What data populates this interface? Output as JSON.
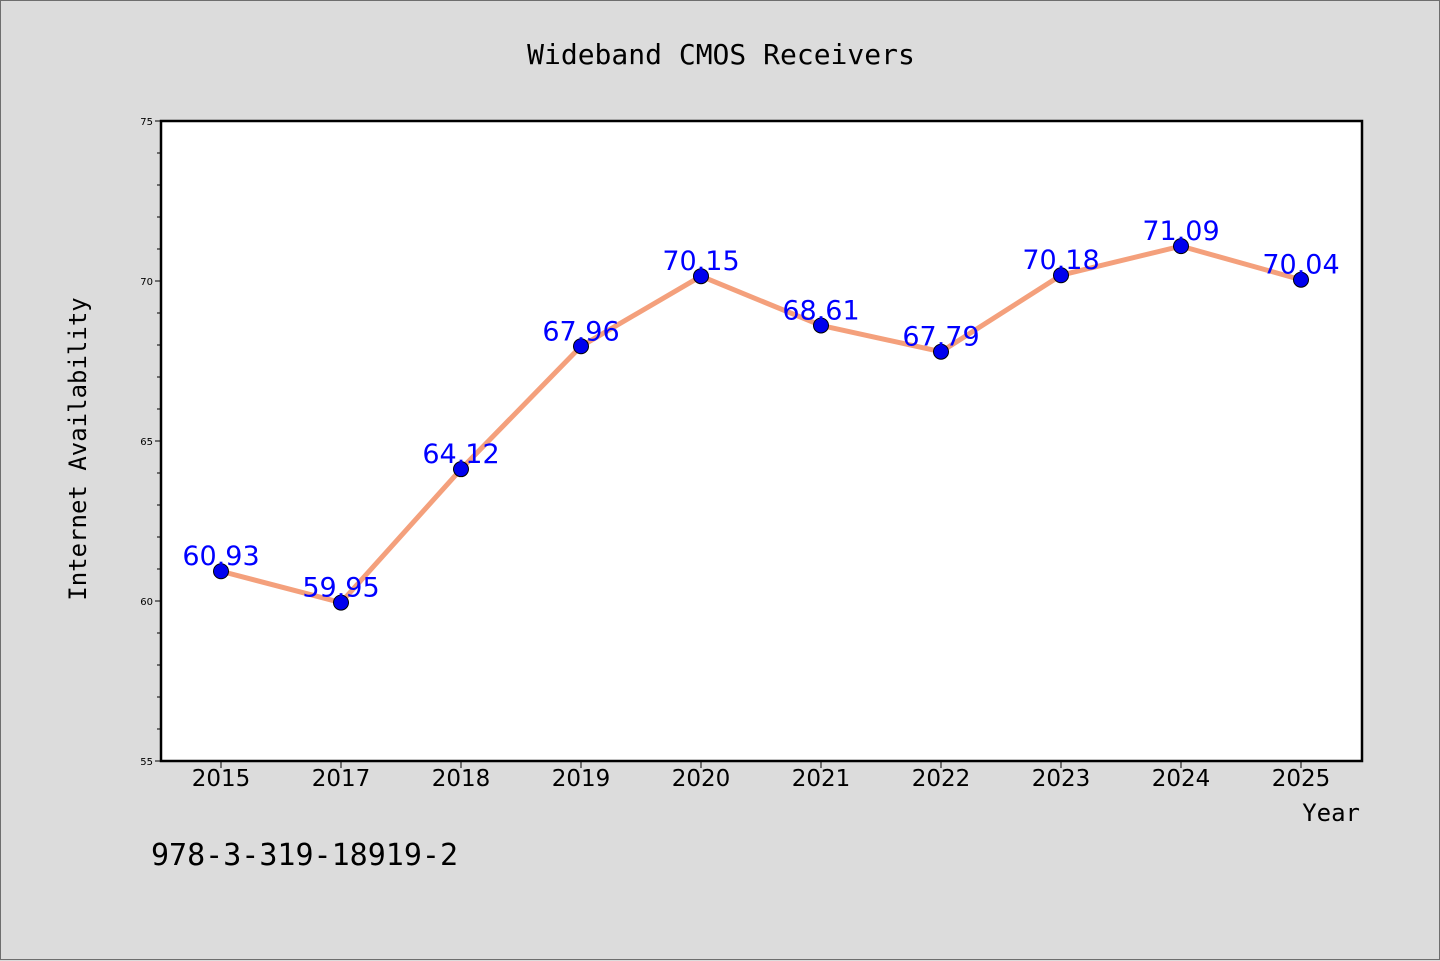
{
  "chart_data": {
    "type": "line",
    "title": "Wideband CMOS Receivers",
    "xlabel": "Year",
    "ylabel": "Internet Availability",
    "categories": [
      "2015",
      "2017",
      "2018",
      "2019",
      "2020",
      "2021",
      "2022",
      "2023",
      "2024",
      "2025"
    ],
    "values": [
      60.93,
      59.95,
      64.12,
      67.96,
      70.15,
      68.61,
      67.79,
      70.18,
      71.09,
      70.04
    ],
    "data_labels": [
      "60.93",
      "59.95",
      "64.12",
      "67.96",
      "70.15",
      "68.61",
      "67.79",
      "70.18",
      "71.09",
      "70.04"
    ],
    "ylim": [
      55,
      75
    ],
    "yticks": [
      55,
      60,
      65,
      70,
      75
    ],
    "ytick_labels": [
      "55",
      "60",
      "65",
      "70",
      "75"
    ],
    "grid": false,
    "legend": "none",
    "line_color": "#f4a07c",
    "marker_color": "#0000ee",
    "label_color": "#0000ff"
  },
  "annotation": "978-3-319-18919-2"
}
